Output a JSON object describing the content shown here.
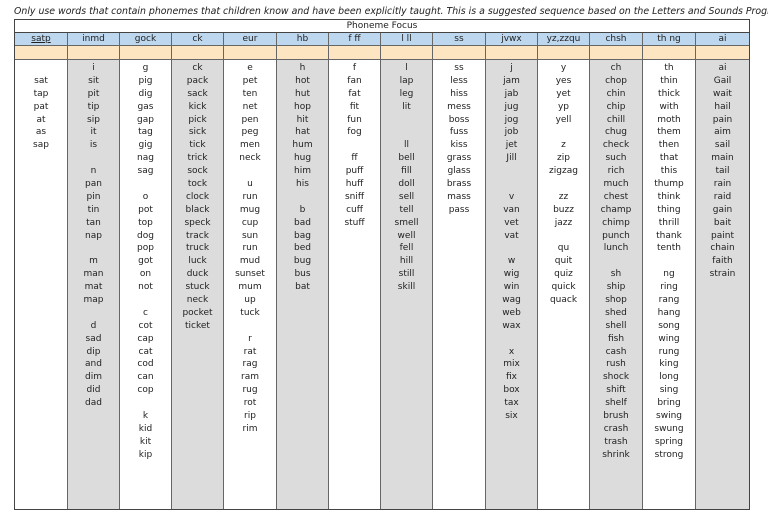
{
  "note": "Only use words that contain phonemes that children know and have been explicitly taught.  This is a suggested sequence based on the Letters and Sounds Program",
  "table_title": "Phoneme Focus",
  "columns": [
    {
      "header": "satp",
      "underline": true,
      "shaded": false,
      "words": [
        "",
        "sat",
        "tap",
        "pat",
        "at",
        "as",
        "sap"
      ]
    },
    {
      "header": "inmd",
      "underline": false,
      "shaded": true,
      "words": [
        "i",
        "sit",
        "pit",
        "tip",
        "sip",
        "it",
        "is",
        "",
        "n",
        "pan",
        "pin",
        "tin",
        "tan",
        "nap",
        "",
        "m",
        "man",
        "mat",
        "map",
        "",
        "d",
        "sad",
        "dip",
        "and",
        "dim",
        "did",
        "dad"
      ]
    },
    {
      "header": "gock",
      "underline": false,
      "shaded": false,
      "words": [
        "g",
        "pig",
        "dig",
        "gas",
        "gap",
        "tag",
        "gig",
        "nag",
        "sag",
        "",
        "o",
        "pot",
        "top",
        "dog",
        "pop",
        "got",
        "on",
        "not",
        "",
        "c",
        "cot",
        "cap",
        "cat",
        "cod",
        "can",
        "cop",
        "",
        "k",
        "kid",
        "kit",
        "kip"
      ]
    },
    {
      "header": "ck",
      "underline": false,
      "shaded": true,
      "words": [
        "ck",
        "pack",
        "sack",
        "kick",
        "pick",
        "sick",
        "tick",
        "trick",
        "sock",
        "tock",
        "clock",
        "black",
        "speck",
        "track",
        "truck",
        "luck",
        "duck",
        "stuck",
        "neck",
        "pocket",
        "ticket"
      ]
    },
    {
      "header": "eur",
      "underline": false,
      "shaded": false,
      "words": [
        "e",
        "pet",
        "ten",
        "net",
        "pen",
        "peg",
        "men",
        "neck",
        "",
        "u",
        "run",
        "mug",
        "cup",
        "sun",
        "run",
        "mud",
        "sunset",
        "mum",
        "up",
        "tuck",
        "",
        "r",
        "rat",
        "rag",
        "ram",
        "rug",
        "rot",
        "rip",
        "rim"
      ]
    },
    {
      "header": "hb",
      "underline": false,
      "shaded": true,
      "words": [
        "h",
        "hot",
        "hut",
        "hop",
        "hit",
        "hat",
        "hum",
        "hug",
        "him",
        "his",
        "",
        "b",
        "bad",
        "bag",
        "bed",
        "bug",
        "bus",
        "bat"
      ]
    },
    {
      "header": "f ff",
      "underline": false,
      "shaded": false,
      "words": [
        "f",
        "fan",
        "fat",
        "fit",
        "fun",
        "fog",
        "",
        "ff",
        "puff",
        "huff",
        "sniff",
        "cuff",
        "stuff"
      ]
    },
    {
      "header": "l ll",
      "underline": false,
      "shaded": true,
      "words": [
        "l",
        "lap",
        "leg",
        "lit",
        "",
        "",
        "ll",
        "bell",
        "fill",
        "doll",
        "sell",
        "tell",
        "smell",
        "well",
        "fell",
        "hill",
        "still",
        "skill"
      ]
    },
    {
      "header": "ss",
      "underline": false,
      "shaded": false,
      "words": [
        "ss",
        "less",
        "hiss",
        "mess",
        "boss",
        "fuss",
        "kiss",
        "grass",
        "glass",
        "brass",
        "mass",
        "pass"
      ]
    },
    {
      "header": "jvwx",
      "underline": false,
      "shaded": true,
      "words": [
        "j",
        "jam",
        "jab",
        "jug",
        "jog",
        "job",
        "jet",
        "Jill",
        "",
        "",
        "v",
        "van",
        "vet",
        "vat",
        "",
        "w",
        "wig",
        "win",
        "wag",
        "web",
        "wax",
        "",
        "x",
        "mix",
        "fix",
        "box",
        "tax",
        "six"
      ]
    },
    {
      "header": "yz,zzqu",
      "underline": false,
      "shaded": false,
      "words": [
        "y",
        "yes",
        "yet",
        "yp",
        "yell",
        "",
        "z",
        "zip",
        "zigzag",
        "",
        "zz",
        "buzz",
        "jazz",
        "",
        "qu",
        "quit",
        "quiz",
        "quick",
        "quack"
      ]
    },
    {
      "header": "chsh",
      "underline": false,
      "shaded": true,
      "words": [
        "ch",
        "chop",
        "chin",
        "chip",
        "chill",
        "chug",
        "check",
        "such",
        "rich",
        "much",
        "chest",
        "champ",
        "chimp",
        "punch",
        "lunch",
        "",
        "sh",
        "ship",
        "shop",
        "shed",
        "shell",
        "fish",
        "cash",
        "rush",
        "shock",
        "shift",
        "shelf",
        "brush",
        "crash",
        "trash",
        "shrink"
      ]
    },
    {
      "header": "th ng",
      "underline": false,
      "shaded": false,
      "words": [
        "th",
        "thin",
        "thick",
        "with",
        "moth",
        "them",
        "then",
        "that",
        "this",
        "thump",
        "think",
        "thing",
        "thrill",
        "thank",
        "tenth",
        "",
        "ng",
        "ring",
        "rang",
        "hang",
        "song",
        "wing",
        "rung",
        "king",
        "long",
        "sing",
        "bring",
        "swing",
        "swung",
        "spring",
        "strong"
      ]
    },
    {
      "header": "ai",
      "underline": false,
      "shaded": true,
      "words": [
        "ai",
        "Gail",
        "wait",
        "hail",
        "pain",
        "aim",
        "sail",
        "main",
        "tail",
        "rain",
        "raid",
        "gain",
        "bait",
        "paint",
        "chain",
        "faith",
        "strain"
      ]
    }
  ]
}
